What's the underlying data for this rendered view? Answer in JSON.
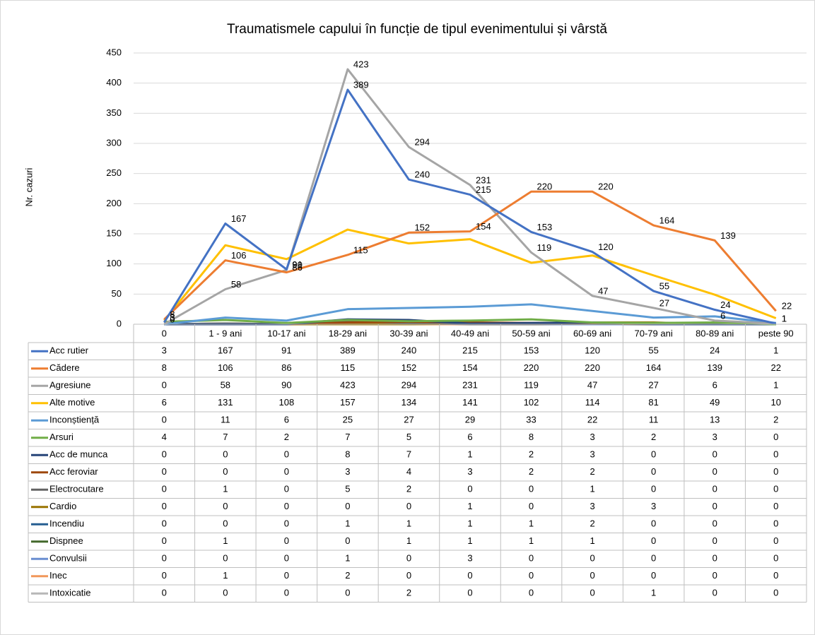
{
  "chart_data": {
    "type": "line",
    "title": "Traumatismele capului în funcție de tipul evenimentului și vârstă",
    "y_label": "Nr. cazuri",
    "categories": [
      "0",
      "1 - 9 ani",
      "10-17 ani",
      "18-29 ani",
      "30-39 ani",
      "40-49 ani",
      "50-59 ani",
      "60-69 ani",
      "70-79 ani",
      "80-89 ani",
      "peste 90"
    ],
    "ylim": [
      0,
      450
    ],
    "yticks": [
      0,
      50,
      100,
      150,
      200,
      250,
      300,
      350,
      400,
      450
    ],
    "grid": true,
    "data_table": true,
    "series": [
      {
        "name": "Acc rutier",
        "color": "#4472c4",
        "show_labels": true,
        "values": [
          3,
          167,
          91,
          389,
          240,
          215,
          153,
          120,
          55,
          24,
          1
        ]
      },
      {
        "name": "Cădere",
        "color": "#ed7d31",
        "show_labels": true,
        "values": [
          8,
          106,
          86,
          115,
          152,
          154,
          220,
          220,
          164,
          139,
          22
        ]
      },
      {
        "name": "Agresiune",
        "color": "#a5a5a5",
        "show_labels": true,
        "values": [
          0,
          58,
          90,
          423,
          294,
          231,
          119,
          47,
          27,
          6,
          1
        ]
      },
      {
        "name": "Alte motive",
        "color": "#ffc000",
        "values": [
          6,
          131,
          108,
          157,
          134,
          141,
          102,
          114,
          81,
          49,
          10
        ]
      },
      {
        "name": "Inconștiență",
        "color": "#5b9bd5",
        "values": [
          0,
          11,
          6,
          25,
          27,
          29,
          33,
          22,
          11,
          13,
          2
        ]
      },
      {
        "name": "Arsuri",
        "color": "#70ad47",
        "values": [
          4,
          7,
          2,
          7,
          5,
          6,
          8,
          3,
          2,
          3,
          0
        ]
      },
      {
        "name": "Acc de munca",
        "color": "#264478",
        "values": [
          0,
          0,
          0,
          8,
          7,
          1,
          2,
          3,
          0,
          0,
          0
        ]
      },
      {
        "name": "Acc feroviar",
        "color": "#9e480e",
        "values": [
          0,
          0,
          0,
          3,
          4,
          3,
          2,
          2,
          0,
          0,
          0
        ]
      },
      {
        "name": "Electrocutare",
        "color": "#636363",
        "values": [
          0,
          1,
          0,
          5,
          2,
          0,
          0,
          1,
          0,
          0,
          0
        ]
      },
      {
        "name": "Cardio",
        "color": "#997300",
        "values": [
          0,
          0,
          0,
          0,
          0,
          1,
          0,
          3,
          3,
          0,
          0
        ]
      },
      {
        "name": "Incendiu",
        "color": "#255e91",
        "values": [
          0,
          0,
          0,
          1,
          1,
          1,
          1,
          2,
          0,
          0,
          0
        ]
      },
      {
        "name": "Dispnee",
        "color": "#43682b",
        "values": [
          0,
          1,
          0,
          0,
          1,
          1,
          1,
          1,
          0,
          0,
          0
        ]
      },
      {
        "name": "Convulsii",
        "color": "#698ed0",
        "values": [
          0,
          0,
          0,
          1,
          0,
          3,
          0,
          0,
          0,
          0,
          0
        ]
      },
      {
        "name": "Inec",
        "color": "#f1975a",
        "values": [
          0,
          1,
          0,
          2,
          0,
          0,
          0,
          0,
          0,
          0,
          0
        ]
      },
      {
        "name": "Intoxicatie",
        "color": "#b7b7b7",
        "values": [
          0,
          0,
          0,
          0,
          2,
          0,
          0,
          0,
          1,
          0,
          0
        ]
      }
    ]
  }
}
